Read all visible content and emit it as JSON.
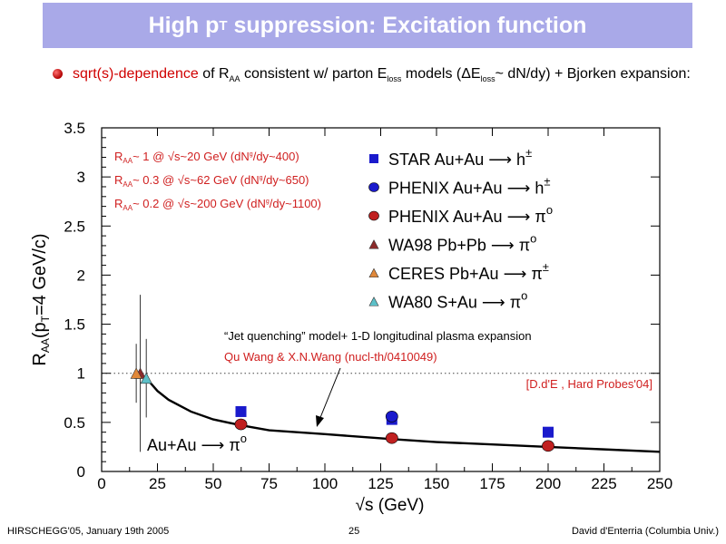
{
  "slide": {
    "title_main": "High p",
    "title_sub": "T",
    "title_rest": " suppression: Excitation function",
    "bullet": {
      "highlight": "sqrt(s)-dependence",
      "t1": " of R",
      "t1_sub": "AA",
      "t2": " consistent w/ parton E",
      "t2_sub": "loss",
      "t3": " models (ΔE",
      "t3_sub": "loss",
      "t4": "~ dN/dy) + Bjorken expansion:"
    },
    "footer": {
      "left": "HIRSCHEGG'05, January 19th 2005",
      "center": "25",
      "right": "David d'Enterria (Columbia Univ.)"
    }
  },
  "chart_data": {
    "type": "scatter",
    "xlabel": "√s (GeV)",
    "ylabel_main": "R",
    "ylabel_sub": "AA",
    "ylabel_rest": "(p",
    "ylabel_sub2": "T",
    "ylabel_end": "=4 GeV/c)",
    "xlim": [
      0,
      250
    ],
    "ylim": [
      0,
      3.5
    ],
    "xticks": [
      "0",
      "25",
      "50",
      "75",
      "100",
      "125",
      "150",
      "175",
      "200",
      "225",
      "250"
    ],
    "yticks": [
      "0",
      "0.5",
      "1",
      "1.5",
      "2",
      "2.5",
      "3",
      "3.5"
    ],
    "reference_line": 1,
    "series": [
      {
        "name": "STAR Au+Au",
        "arrow": "⟶",
        "particle": "h",
        "particle_sup": "±",
        "marker": "square",
        "color": "#1a1acc",
        "points": [
          {
            "x": 62.4,
            "y": 0.61
          },
          {
            "x": 130,
            "y": 0.53
          },
          {
            "x": 200,
            "y": 0.4
          }
        ]
      },
      {
        "name": "PHENIX Au+Au",
        "arrow": "⟶",
        "particle": "h",
        "particle_sup": "±",
        "marker": "circle",
        "color": "#1a1acc",
        "points": [
          {
            "x": 130,
            "y": 0.56
          }
        ]
      },
      {
        "name": "PHENIX Au+Au",
        "arrow": "⟶",
        "particle": "π",
        "particle_sup": "o",
        "marker": "circle",
        "color": "#c02020",
        "points": [
          {
            "x": 62.4,
            "y": 0.48,
            "err": 0.05
          },
          {
            "x": 130,
            "y": 0.34,
            "err": 0.04
          },
          {
            "x": 200,
            "y": 0.26,
            "err": 0.03
          }
        ]
      },
      {
        "name": "WA98 Pb+Pb",
        "arrow": "⟶",
        "particle": "π",
        "particle_sup": "o",
        "marker": "triangle",
        "color": "#8b2a2a",
        "points": [
          {
            "x": 17.3,
            "y": 1.0,
            "err": 0.8
          }
        ]
      },
      {
        "name": "CERES Pb+Au",
        "arrow": "⟶",
        "particle": "π",
        "particle_sup": "±",
        "marker": "triangle",
        "color": "#e0883a",
        "points": [
          {
            "x": 15.5,
            "y": 1.0,
            "err": 0.3
          }
        ]
      },
      {
        "name": "WA80 S+Au",
        "arrow": "⟶",
        "particle": "π",
        "particle_sup": "o",
        "marker": "triangle",
        "color": "#5cc0c8",
        "points": [
          {
            "x": 20,
            "y": 0.95,
            "err": 0.4
          }
        ]
      }
    ],
    "model_curve": {
      "x": [
        20,
        25,
        30,
        40,
        50,
        62.4,
        75,
        100,
        130,
        150,
        175,
        200,
        225,
        250
      ],
      "y": [
        0.95,
        0.82,
        0.73,
        0.61,
        0.53,
        0.47,
        0.42,
        0.38,
        0.33,
        0.3,
        0.275,
        0.25,
        0.225,
        0.2
      ]
    },
    "annotations": {
      "raa_lines": [
        {
          "pre": "R",
          "sub": "AA",
          "post": "~ 1 @ √s~20 GeV (dN",
          "sub2": "g",
          "end": "/dy~400)"
        },
        {
          "pre": "R",
          "sub": "AA",
          "post": "~ 0.3 @ √s~62 GeV (dN",
          "sub2": "g",
          "end": "/dy~650)"
        },
        {
          "pre": "R",
          "sub": "AA",
          "post": "~ 0.2 @ √s~200 GeV (dN",
          "sub2": "g",
          "end": "/dy~1100)"
        }
      ],
      "model_label": "“Jet quenching” model+ 1-D longitudinal plasma expansion",
      "model_ref": "Qu Wang & X.N.Wang  (nucl-th/0410049)",
      "compilation": "[D.d'E , Hard Probes'04]",
      "inset_label": "Au+Au",
      "inset_arrow": "⟶",
      "inset_particle": "π",
      "inset_sup": "o"
    }
  }
}
